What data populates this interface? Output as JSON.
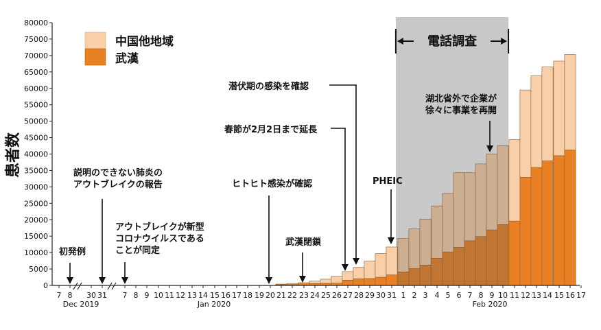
{
  "chart_data": {
    "type": "bar",
    "stacked": true,
    "ylabel": "患者数",
    "ylim": [
      0,
      80000
    ],
    "yticks": [
      0,
      5000,
      10000,
      15000,
      20000,
      25000,
      30000,
      35000,
      40000,
      45000,
      50000,
      55000,
      60000,
      65000,
      70000,
      75000,
      80000
    ],
    "x_tick_labels": [
      "7",
      "8",
      "30",
      "31",
      "7",
      "8",
      "9",
      "10",
      "11",
      "12",
      "13",
      "14",
      "15",
      "16",
      "17",
      "18",
      "19",
      "20",
      "21",
      "22",
      "23",
      "24",
      "25",
      "26",
      "27",
      "28",
      "29",
      "30",
      "31",
      "1",
      "2",
      "3",
      "4",
      "5",
      "6",
      "7",
      "8",
      "9",
      "10",
      "11",
      "12",
      "13",
      "14",
      "15",
      "16",
      "17"
    ],
    "x_group_labels": [
      "Dec 2019",
      "Jan 2020",
      "Feb 2020"
    ],
    "legend": {
      "placement": "top-left",
      "entries": [
        {
          "name": "中国他地域",
          "color": "#f8cfa8"
        },
        {
          "name": "武漢",
          "color": "#e98024"
        }
      ]
    },
    "categories": [
      "1/21",
      "1/22",
      "1/23",
      "1/24",
      "1/25",
      "1/26",
      "1/27",
      "1/28",
      "1/29",
      "1/30",
      "1/31",
      "2/1",
      "2/2",
      "2/3",
      "2/4",
      "2/5",
      "2/6",
      "2/7",
      "2/8",
      "2/9",
      "2/10",
      "2/11",
      "2/12",
      "2/13",
      "2/14",
      "2/15",
      "2/16"
    ],
    "series": [
      {
        "name": "武漢",
        "color": "#e98024",
        "values": [
          250,
          300,
          490,
          570,
          620,
          700,
          1600,
          2000,
          2100,
          2500,
          3200,
          4100,
          5100,
          6200,
          8300,
          10200,
          11600,
          13600,
          14900,
          16900,
          18500,
          19600,
          32900,
          35900,
          37900,
          39500,
          41200
        ]
      },
      {
        "name": "中国他地域",
        "color": "#f8cfa8",
        "values": [
          150,
          300,
          360,
          730,
          1280,
          2100,
          2600,
          3500,
          5300,
          7200,
          8500,
          10200,
          12100,
          14000,
          15900,
          17800,
          22700,
          20700,
          22100,
          23100,
          24100,
          24800,
          26600,
          27900,
          28600,
          28800,
          29100
        ]
      }
    ],
    "shaded_period": {
      "label": "電話調査",
      "from": "2/1",
      "to": "2/10",
      "color": "#c8c8c8"
    },
    "annotations": [
      {
        "text": [
          "初発例"
        ],
        "x": "12/8"
      },
      {
        "text": [
          "説明のできない肺炎の",
          "アウトブレイクの報告"
        ],
        "x": "12/31"
      },
      {
        "text": [
          "アウトブレイクが新型",
          "コロナウイルスである",
          "ことが同定"
        ],
        "x": "1/7"
      },
      {
        "text": [
          "ヒトヒト感染が確認"
        ],
        "x": "1/20"
      },
      {
        "text": [
          "武漢閉鎖"
        ],
        "x": "1/23"
      },
      {
        "text": [
          "春節が2月2日まで延長"
        ],
        "x": "1/27"
      },
      {
        "text": [
          "潜伏期の感染を確認"
        ],
        "x": "1/28"
      },
      {
        "text": [
          "PHEIC"
        ],
        "x": "1/30"
      },
      {
        "text": [
          "湖北省外で企業が",
          "徐々に事業を再開"
        ],
        "x": "2/9"
      }
    ]
  }
}
